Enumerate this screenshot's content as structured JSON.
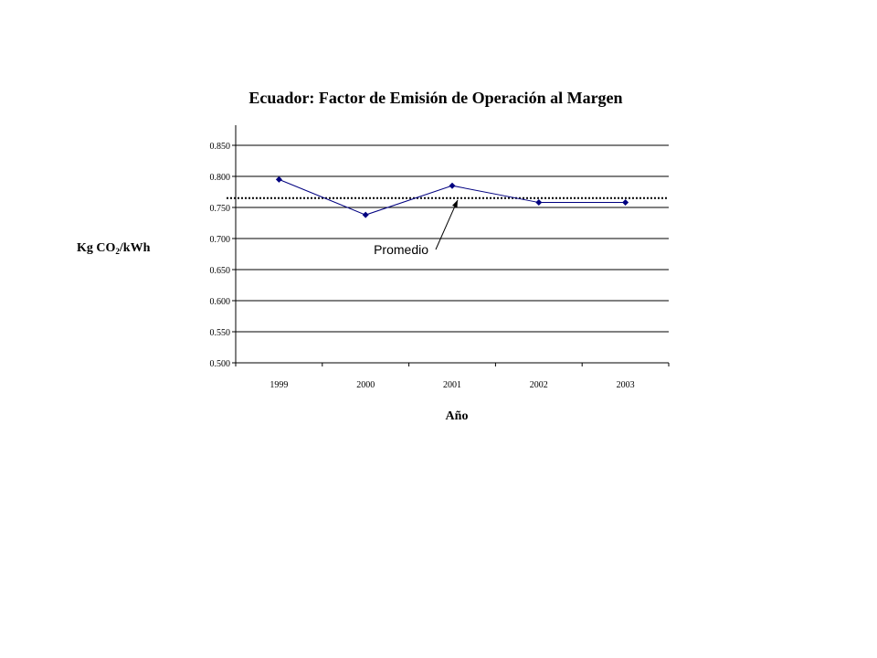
{
  "chart_data": {
    "type": "line",
    "title": "Ecuador: Factor de Emisión de Operación al Margen",
    "xlabel": "Año",
    "ylabel": {
      "prefix": "Kg CO",
      "subscript": "2",
      "suffix": "/kWh"
    },
    "categories": [
      "1999",
      "2000",
      "2001",
      "2002",
      "2003"
    ],
    "series": [
      {
        "values": [
          0.795,
          0.738,
          0.785,
          0.758,
          0.758
        ],
        "color": "#000080",
        "marker": "diamond"
      }
    ],
    "average": {
      "value": 0.765,
      "label": "Promedio",
      "style": "dotted"
    },
    "ylim": [
      0.5,
      0.85
    ],
    "yticks": [
      "0.500",
      "0.550",
      "0.600",
      "0.650",
      "0.700",
      "0.750",
      "0.800",
      "0.850"
    ],
    "grid": true,
    "legend": "none"
  }
}
